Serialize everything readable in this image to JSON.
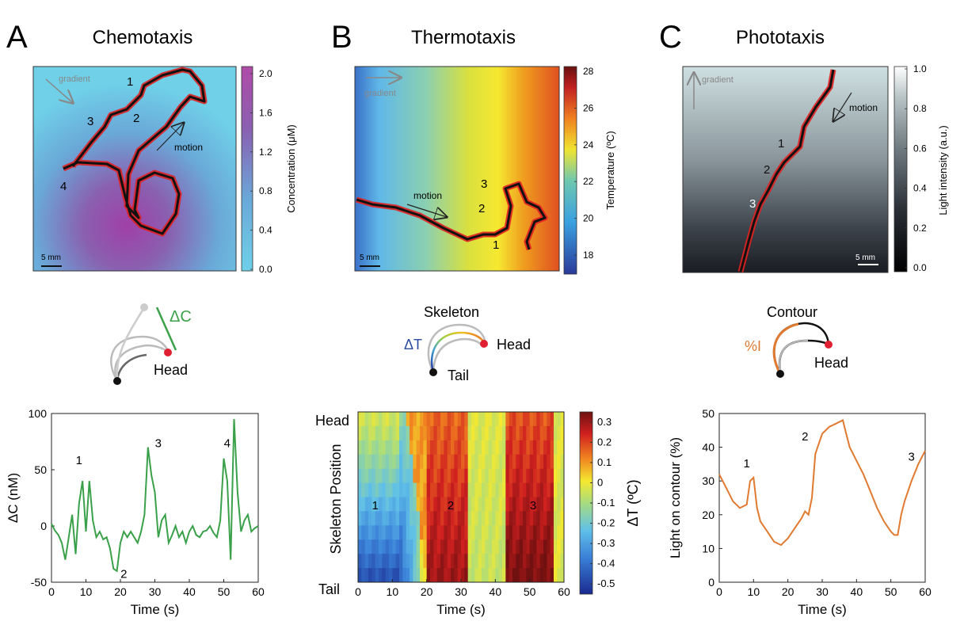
{
  "panels": [
    {
      "letter": "A",
      "title": "Chemotaxis",
      "map": {
        "gradient_label": "gradient",
        "motion_label": "motion",
        "scale_label": "5 mm",
        "markers": [
          "1",
          "2",
          "3",
          "4"
        ],
        "colorbar": {
          "label": "Concentration (μM)",
          "ticks": [
            "2.0",
            "1.6",
            "1.2",
            "0.8",
            "0.4",
            "0.0"
          ],
          "colors": [
            "#6fd0e8",
            "#6aa8d8",
            "#8a5fb0",
            "#b04ca8"
          ]
        }
      },
      "schematic": {
        "label_delta": "ΔC",
        "label_head": "Head"
      },
      "chart_data": {
        "type": "line",
        "title": "",
        "xlabel": "Time (s)",
        "ylabel": "ΔC  (nM)",
        "xlim": [
          0,
          60
        ],
        "ylim": [
          -50,
          100
        ],
        "xticks": [
          "0",
          "10",
          "20",
          "30",
          "40",
          "50",
          "60"
        ],
        "yticks": [
          "100",
          "50",
          "0",
          "-50"
        ],
        "color": "#3aa14a",
        "x": [
          0,
          1,
          2,
          3,
          4,
          5,
          6,
          7,
          8,
          9,
          10,
          11,
          12,
          13,
          14,
          15,
          16,
          17,
          18,
          19,
          20,
          21,
          22,
          23,
          24,
          25,
          26,
          27,
          28,
          29,
          30,
          31,
          32,
          33,
          34,
          35,
          36,
          37,
          38,
          39,
          40,
          41,
          42,
          43,
          44,
          45,
          46,
          47,
          48,
          49,
          50,
          51,
          52,
          53,
          54,
          55,
          56,
          57,
          58,
          59,
          60
        ],
        "values": [
          2,
          -4,
          -8,
          -15,
          -30,
          -10,
          10,
          -25,
          20,
          40,
          -5,
          40,
          5,
          -10,
          -5,
          -12,
          -10,
          -20,
          -38,
          -40,
          -15,
          -5,
          -10,
          -5,
          -10,
          -15,
          -5,
          10,
          70,
          45,
          30,
          -10,
          5,
          10,
          -15,
          -8,
          0,
          -10,
          -5,
          -15,
          -5,
          0,
          -8,
          -10,
          -5,
          -4,
          0,
          -6,
          -10,
          5,
          60,
          40,
          -30,
          95,
          30,
          -5,
          5,
          10,
          -5,
          -2,
          0
        ],
        "annotations": [
          {
            "text": "1",
            "x": 8,
            "y": 55
          },
          {
            "text": "2",
            "x": 21,
            "y": -46
          },
          {
            "text": "3",
            "x": 31,
            "y": 70
          },
          {
            "text": "4",
            "x": 51,
            "y": 70
          }
        ]
      }
    },
    {
      "letter": "B",
      "title": "Thermotaxis",
      "map": {
        "gradient_label": "gradient",
        "motion_label": "motion",
        "scale_label": "5 mm",
        "markers": [
          "1",
          "2",
          "3"
        ],
        "colorbar": {
          "label": "Temperature (ºC)",
          "ticks": [
            "28",
            "26",
            "24",
            "22",
            "20",
            "18"
          ],
          "colors": [
            "#2a3a9a",
            "#3aa0e0",
            "#6fc8b0",
            "#f0e430",
            "#f08020",
            "#c02020",
            "#6a1010"
          ]
        }
      },
      "schematic": {
        "label_top": "Skeleton",
        "label_delta": "ΔT",
        "label_head": "Head",
        "label_tail": "Tail"
      },
      "chart_data": {
        "type": "heatmap",
        "title": "",
        "xlabel": "Time (s)",
        "ylabel": "Skeleton Position",
        "y_top_label": "Head",
        "y_bottom_label": "Tail",
        "xlim": [
          0,
          60
        ],
        "xticks": [
          "0",
          "10",
          "20",
          "30",
          "40",
          "50",
          "60"
        ],
        "colorbar_label": "ΔT (ºC)",
        "colorbar_ticks": [
          "0.3",
          "0.2",
          "0.1",
          "0",
          "-0.1",
          "-0.2",
          "-0.3",
          "-0.4",
          "-0.5"
        ],
        "vrange": [
          -0.55,
          0.35
        ],
        "annotations": [
          {
            "text": "1",
            "x": 5,
            "row": 6.3
          },
          {
            "text": "2",
            "x": 27,
            "row": 6.3
          },
          {
            "text": "3",
            "x": 51,
            "row": 6.3
          }
        ]
      }
    },
    {
      "letter": "C",
      "title": "Phototaxis",
      "map": {
        "gradient_label": "gradient",
        "motion_label": "motion",
        "scale_label": "5 mm",
        "markers": [
          "1",
          "2",
          "3"
        ],
        "colorbar": {
          "label": "Light intensity (a.u.)",
          "ticks": [
            "1.0",
            "0.8",
            "0.6",
            "0.4",
            "0.2",
            "0.0"
          ],
          "colors": [
            "#ffffff",
            "#b8c4c6",
            "#6f7a80",
            "#2a2f36",
            "#000000"
          ]
        }
      },
      "schematic": {
        "label_top": "Contour",
        "label_delta": "%I",
        "label_head": "Head"
      },
      "chart_data": {
        "type": "line",
        "title": "",
        "xlabel": "Time (s)",
        "ylabel": "Light on contour (%)",
        "xlim": [
          0,
          60
        ],
        "ylim": [
          0,
          50
        ],
        "xticks": [
          "0",
          "10",
          "20",
          "30",
          "40",
          "50",
          "60"
        ],
        "yticks": [
          "50",
          "40",
          "30",
          "20",
          "10",
          "0"
        ],
        "color": "#e07a30",
        "x": [
          0,
          2,
          4,
          6,
          8,
          9,
          10,
          11,
          12,
          14,
          16,
          18,
          20,
          22,
          24,
          25,
          26,
          27,
          28,
          30,
          32,
          34,
          36,
          37,
          38,
          40,
          42,
          44,
          46,
          48,
          50,
          51,
          52,
          53,
          54,
          56,
          58,
          60
        ],
        "values": [
          32,
          28,
          24,
          22,
          23,
          30,
          31,
          22,
          18,
          15,
          12,
          11,
          13,
          16,
          19,
          21,
          20,
          25,
          38,
          44,
          46,
          47,
          48,
          44,
          40,
          36,
          32,
          27,
          22,
          18,
          15,
          14,
          14,
          20,
          24,
          30,
          35,
          39
        ],
        "annotations": [
          {
            "text": "1",
            "x": 8,
            "y": 34
          },
          {
            "text": "2",
            "x": 25,
            "y": 42
          },
          {
            "text": "3",
            "x": 56,
            "y": 36
          }
        ]
      }
    }
  ]
}
